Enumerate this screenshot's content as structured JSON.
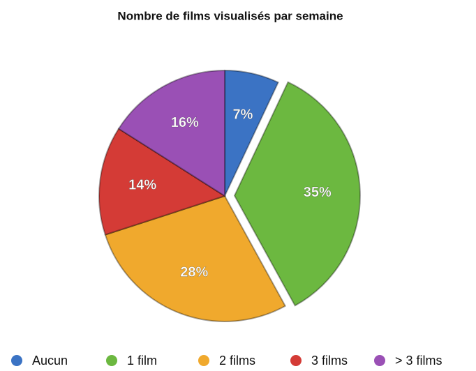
{
  "chart_data": {
    "type": "pie",
    "title": "Nombre de films visualisés par semaine",
    "categories": [
      "Aucun",
      "1 film",
      "2 films",
      "3 films",
      "> 3 films"
    ],
    "values": [
      7,
      35,
      28,
      14,
      16
    ],
    "value_labels": [
      "7%",
      "35%",
      "28%",
      "14%",
      "16%"
    ],
    "colors": [
      "#3b73c4",
      "#6cb840",
      "#f0a92d",
      "#d43b36",
      "#9a50b5"
    ],
    "exploded": [
      false,
      true,
      false,
      false,
      false
    ],
    "legend": "bottom"
  }
}
